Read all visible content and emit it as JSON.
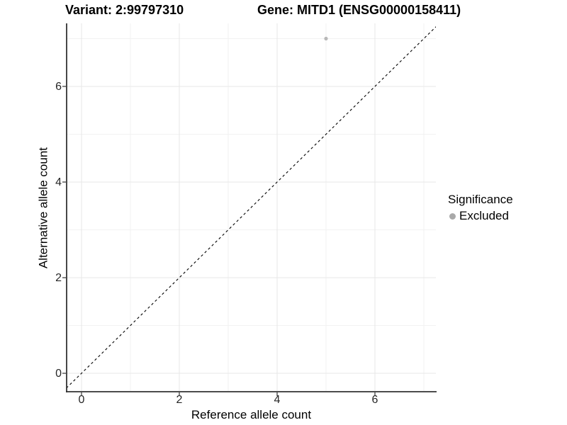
{
  "chart_data": {
    "type": "scatter",
    "title_left": "Variant: 2:99797310",
    "title_right": "Gene: MITD1 (ENSG00000158411)",
    "xlabel": "Reference allele count",
    "ylabel": "Alternative allele count",
    "x_ticks": [
      0,
      2,
      4,
      6
    ],
    "x_tick_labels": [
      "0",
      "2",
      "4",
      "6"
    ],
    "x_minor_ticks": [
      1,
      3,
      5,
      7
    ],
    "y_ticks": [
      0,
      2,
      4,
      6
    ],
    "y_tick_labels": [
      "0",
      "2",
      "4",
      "6"
    ],
    "y_minor_ticks": [
      1,
      3,
      5,
      7
    ],
    "xlim": [
      -0.3,
      7.25
    ],
    "ylim": [
      -0.39,
      7.32
    ],
    "grid": "major-and-minor",
    "panel_background": "#ffffff",
    "grid_major_color": "#e7e7e7",
    "grid_minor_color": "#f2f2f2",
    "axis_line_color": "#333333",
    "reference_line": {
      "type": "identity y=x",
      "style": "dashed",
      "color": "#000000"
    },
    "series": [
      {
        "name": "Excluded",
        "color": "#b8b8b8",
        "points": [
          {
            "x": 5,
            "y": 7
          }
        ]
      }
    ],
    "legend": {
      "title": "Significance",
      "position": "right",
      "items": [
        {
          "label": "Excluded",
          "color": "#a9a9a9"
        }
      ]
    }
  }
}
